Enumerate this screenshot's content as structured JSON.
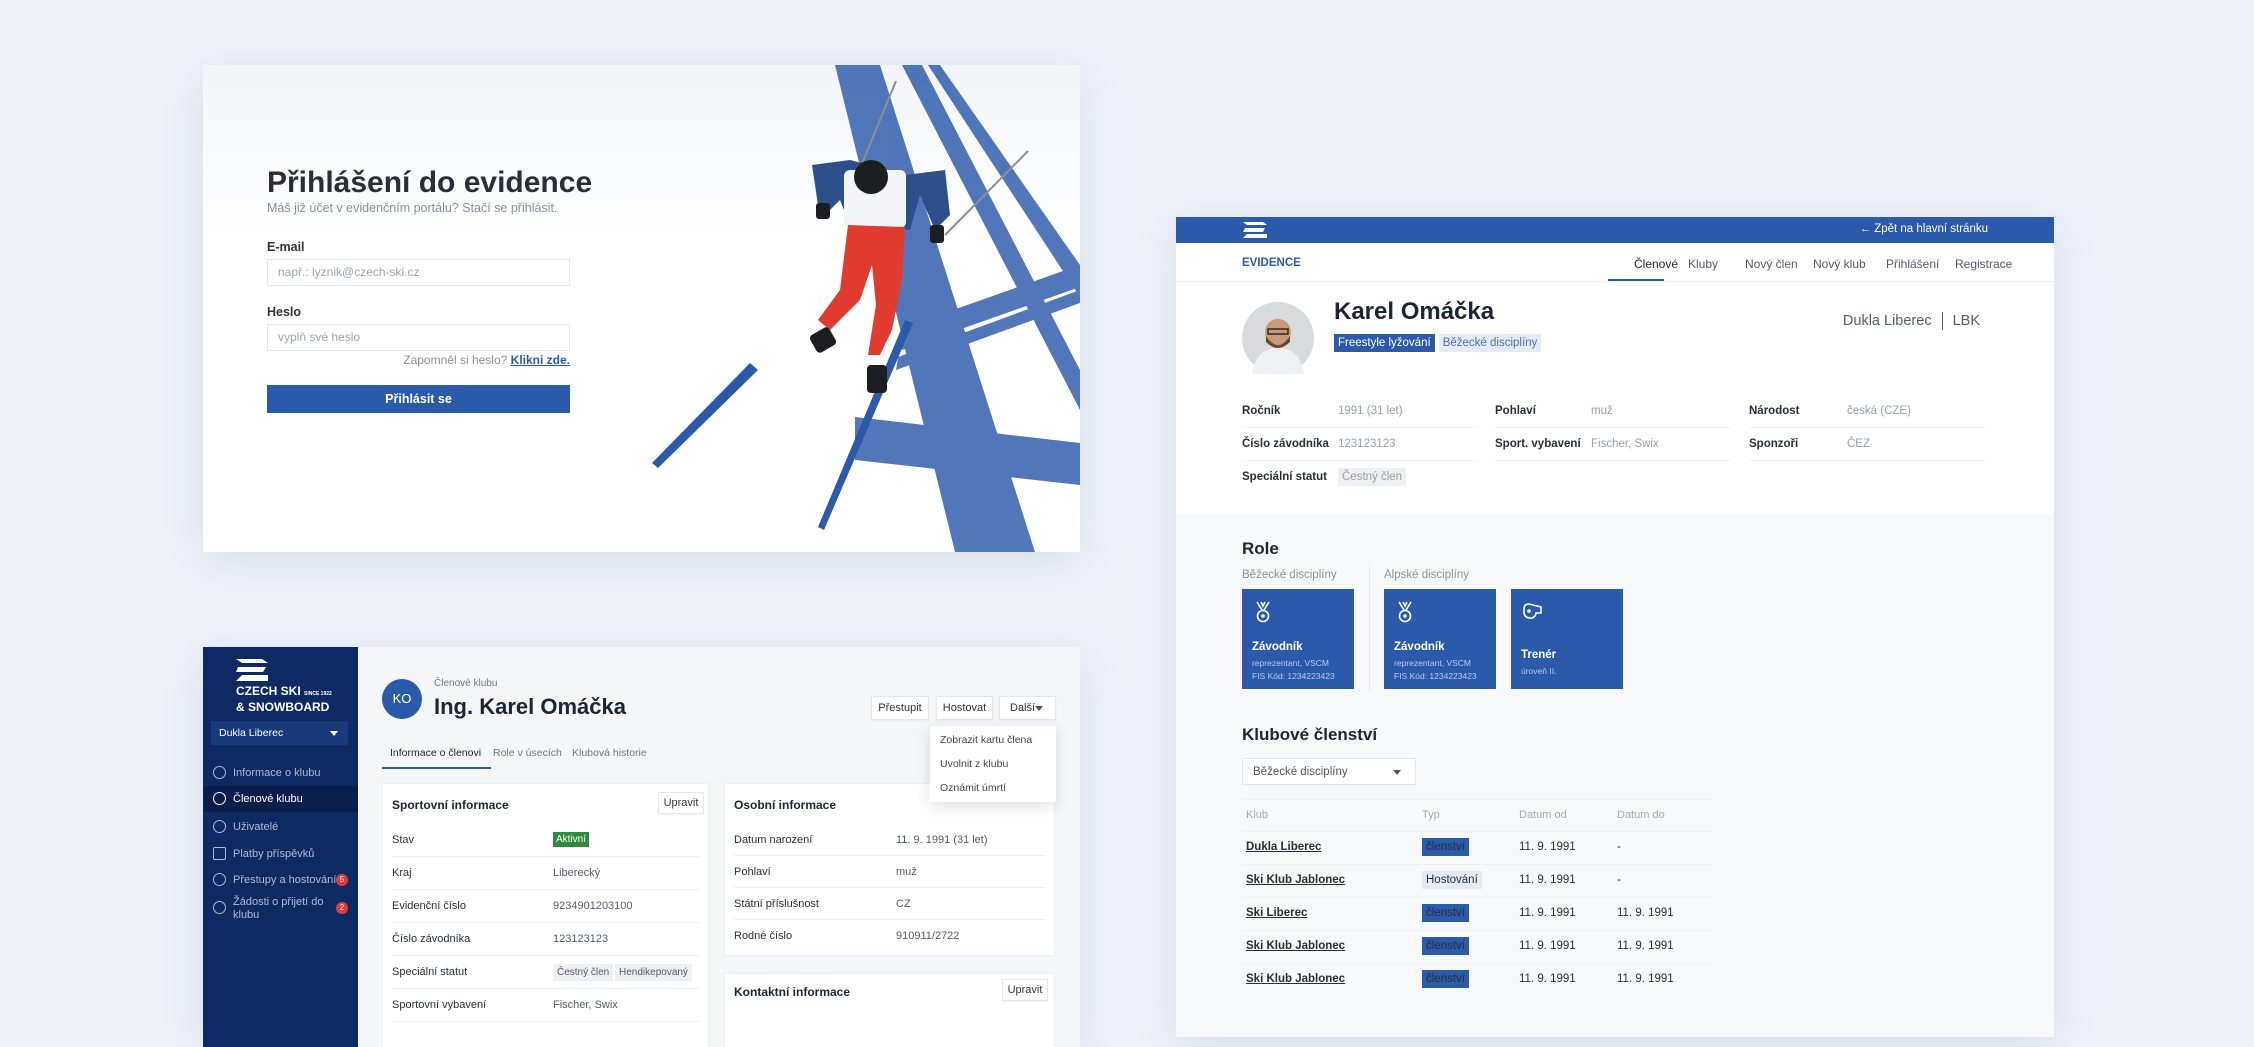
{
  "colors": {
    "brand": "#2b5aab",
    "sidebar": "#0d2a63",
    "background": "#eef1f8",
    "active_badge": "#2e8b3e",
    "alert": "#e23a3a"
  },
  "login": {
    "title": "Přihlášení do evidence",
    "subtitle": "Máš již účet v evidenčním portálu? Stačí se přihlásit.",
    "email_label": "E-mail",
    "email_placeholder": "např.: lyznik@czech-ski.cz",
    "password_label": "Heslo",
    "password_placeholder": "vyplň své heslo",
    "forgot_text": "Zapomněl si heslo?",
    "forgot_link": "Klikni zde.",
    "submit": "Přihlásit se"
  },
  "detail": {
    "back_link": "Zpět na hlavní stránku",
    "brand": "EVIDENCE",
    "nav": [
      "Členové",
      "Kluby",
      "Nový člen",
      "Nový klub",
      "Přihlášení",
      "Registrace"
    ],
    "active_nav": "Členové",
    "name": "Karel Omáčka",
    "tags": [
      "Freestyle lyžování",
      "Běžecké disciplíny"
    ],
    "club": "Dukla Liberec",
    "club_code": "LBK",
    "info": [
      {
        "label": "Ročník",
        "value": "1991 (31 let)"
      },
      {
        "label": "Pohlaví",
        "value": "muž"
      },
      {
        "label": "Národost",
        "value": "česká (CZE)"
      },
      {
        "label": "Číslo závodníka",
        "value": "123123123"
      },
      {
        "label": "Sport. vybavení",
        "value": "Fischer, Swix"
      },
      {
        "label": "Sponzoři",
        "value": "ČEZ"
      },
      {
        "label": "Speciální statut",
        "value": "Čestný člen"
      }
    ],
    "roles_title": "Role",
    "role_groups": [
      "Běžecké disciplíny",
      "Alpské disciplíny"
    ],
    "roles": [
      {
        "icon": "medal-icon",
        "title": "Závodník",
        "line1": "reprezentant, VSCM",
        "line2": "FIS Kód: 1234223423"
      },
      {
        "icon": "medal-icon",
        "title": "Závodník",
        "line1": "reprezentant, VSCM",
        "line2": "FIS Kód: 1234223423"
      },
      {
        "icon": "whistle-icon",
        "title": "Trenér",
        "line1": "úroveň II.",
        "line2": ""
      }
    ],
    "membership_title": "Klubové členství",
    "membership_filter": "Běžecké disciplíny",
    "table_headers": [
      "Klub",
      "Typ",
      "Datum od",
      "Datum do"
    ],
    "table_rows": [
      {
        "club": "Dukla Liberec",
        "type": "členství",
        "from": "11. 9. 1991",
        "to": "-"
      },
      {
        "club": "Ski Klub Jablonec",
        "type": "Hostování",
        "from": "11. 9. 1991",
        "to": "-"
      },
      {
        "club": "Ski Liberec",
        "type": "členství",
        "from": "11. 9. 1991",
        "to": "11. 9. 1991"
      },
      {
        "club": "Ski Klub Jablonec",
        "type": "členství",
        "from": "11. 9. 1991",
        "to": "11. 9. 1991"
      },
      {
        "club": "Ski Klub Jablonec",
        "type": "členství",
        "from": "11. 9. 1991",
        "to": "11. 9. 1991"
      }
    ]
  },
  "admin": {
    "logo_line1": "CZECH SKI",
    "logo_since": "SINCE 1922",
    "logo_line2": "& SNOWBOARD",
    "club_select": "Dukla Liberec",
    "sidebar": [
      {
        "icon": "club-icon",
        "label": "Informace o klubu",
        "badge": ""
      },
      {
        "icon": "members-icon",
        "label": "Členové klubu",
        "badge": "",
        "active": true
      },
      {
        "icon": "key-icon",
        "label": "Uživatelé",
        "badge": ""
      },
      {
        "icon": "card-icon",
        "label": "Platby příspěvků",
        "badge": ""
      },
      {
        "icon": "transfer-icon",
        "label": "Přestupy a hostování",
        "badge": "5"
      },
      {
        "icon": "add-user-icon",
        "label": "Žádosti o přijetí do klubu",
        "badge": "2"
      }
    ],
    "breadcrumb": "Členové klubu",
    "initials": "KO",
    "name": "Ing. Karel Omáčka",
    "actions": [
      "Přestupit",
      "Hostovat",
      "Další"
    ],
    "more_menu": [
      "Zobrazit kartu člena",
      "Uvolnit z klubu",
      "Oznámit úmrtí"
    ],
    "tabs": [
      "Informace o členovi",
      "Role v úsecích",
      "Klubová historie"
    ],
    "sport_title": "Sportovní informace",
    "edit": "Upravit",
    "sport_rows": [
      {
        "label": "Stav",
        "value": "Aktivní"
      },
      {
        "label": "Kraj",
        "value": "Liberecký"
      },
      {
        "label": "Evidenční číslo",
        "value": "9234901203100"
      },
      {
        "label": "Číslo závodníka",
        "value": "123123123"
      },
      {
        "label": "Speciální statut",
        "tags": [
          "Čestný člen",
          "Hendikepovaný"
        ]
      },
      {
        "label": "Sportovní vybavení",
        "value": "Fischer, Swix"
      }
    ],
    "personal_title": "Osobní informace",
    "personal_rows": [
      {
        "label": "Datum narození",
        "value": "11. 9. 1991 (31 let)"
      },
      {
        "label": "Pohlaví",
        "value": "muž"
      },
      {
        "label": "Státní příslušnost",
        "value": "CZ"
      },
      {
        "label": "Rodné číslo",
        "value": "910911/2722"
      }
    ],
    "contact_title": "Kontaktní informace"
  }
}
